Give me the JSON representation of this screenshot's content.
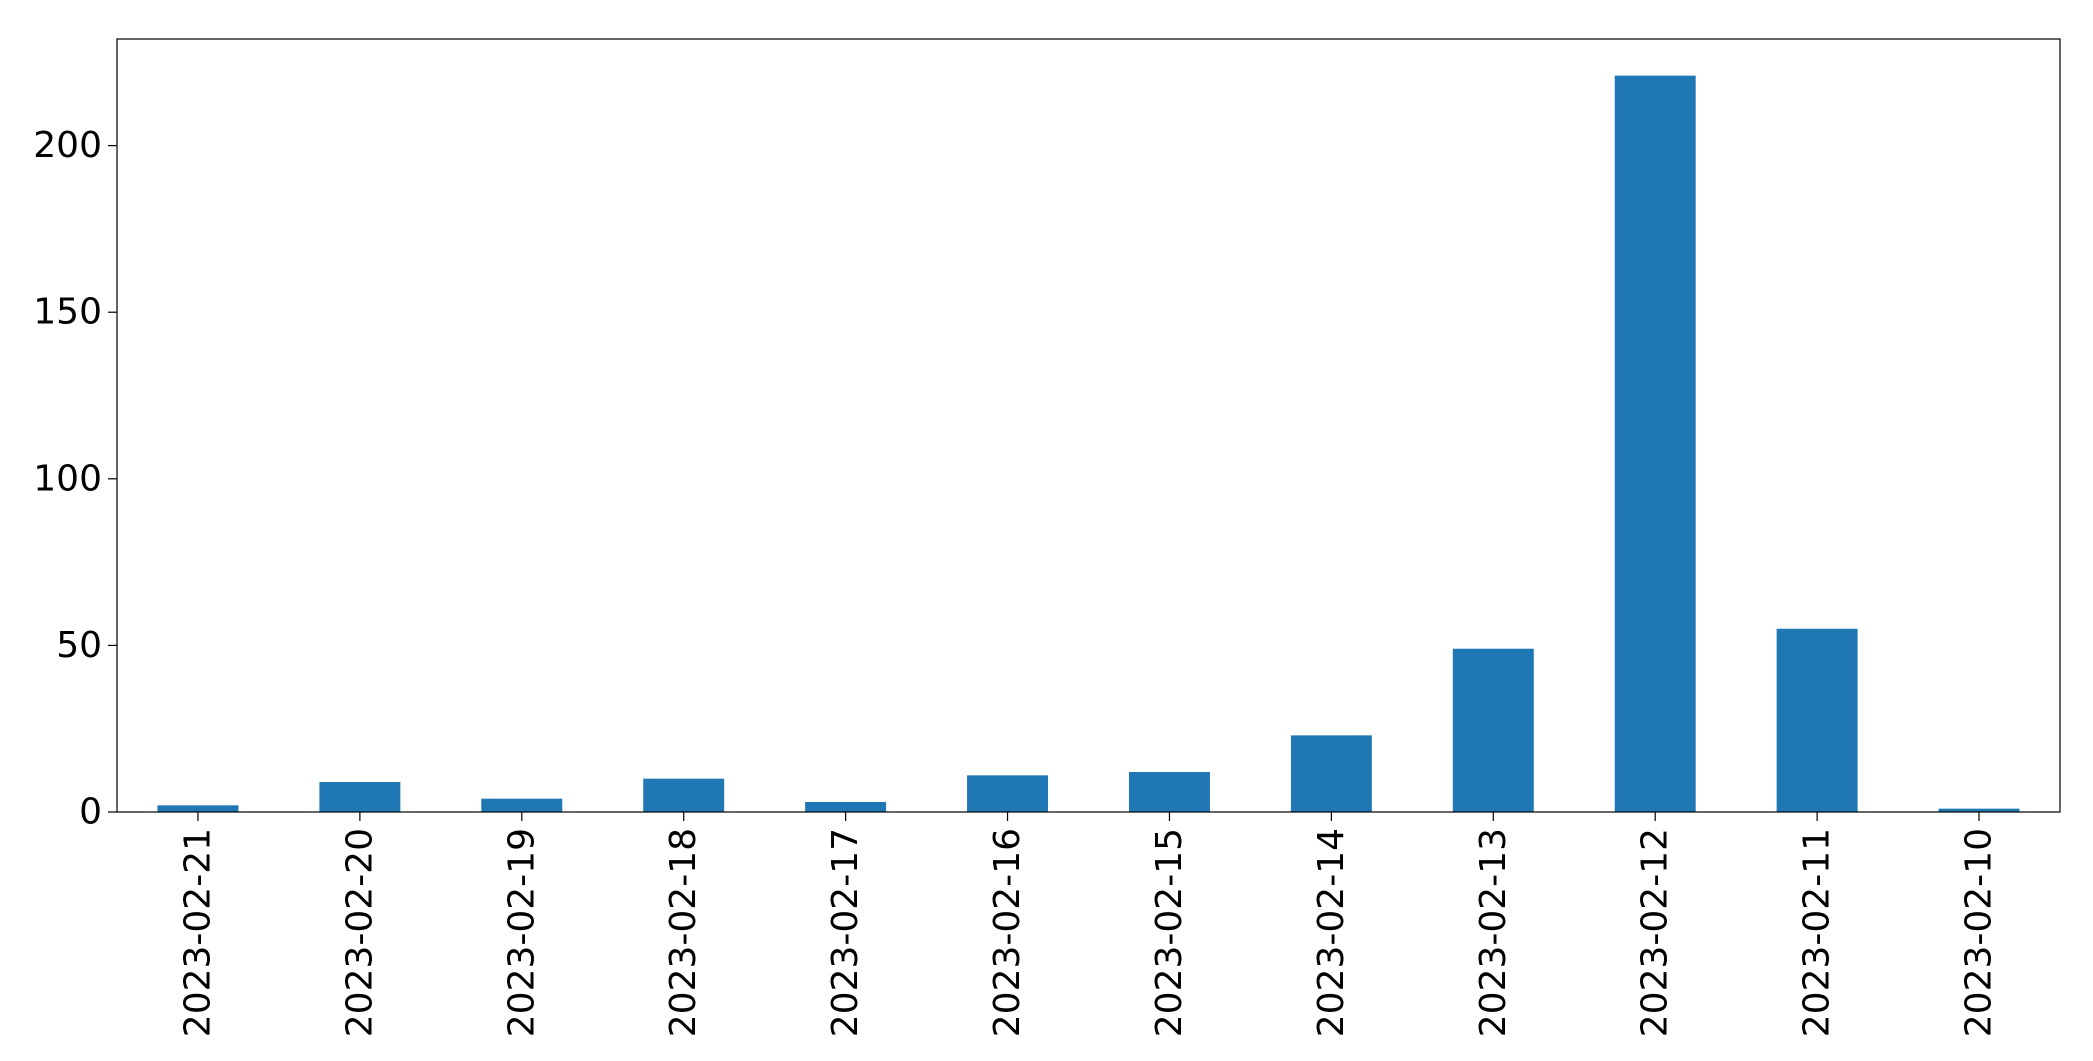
{
  "chart_data": {
    "type": "bar",
    "title": "",
    "xlabel": "",
    "ylabel": "",
    "categories": [
      "2023-02-21",
      "2023-02-20",
      "2023-02-19",
      "2023-02-18",
      "2023-02-17",
      "2023-02-16",
      "2023-02-15",
      "2023-02-14",
      "2023-02-13",
      "2023-02-12",
      "2023-02-11",
      "2023-02-10"
    ],
    "values": [
      2,
      9,
      4,
      10,
      3,
      11,
      12,
      23,
      49,
      221,
      55,
      1
    ],
    "ylim": [
      0,
      232
    ],
    "yticks": [
      0,
      50,
      100,
      150,
      200
    ],
    "ytick_labels": [
      "0",
      "50",
      "100",
      "150",
      "200"
    ],
    "bar_color": "#1f77b4",
    "grid": false,
    "legend": "none"
  }
}
